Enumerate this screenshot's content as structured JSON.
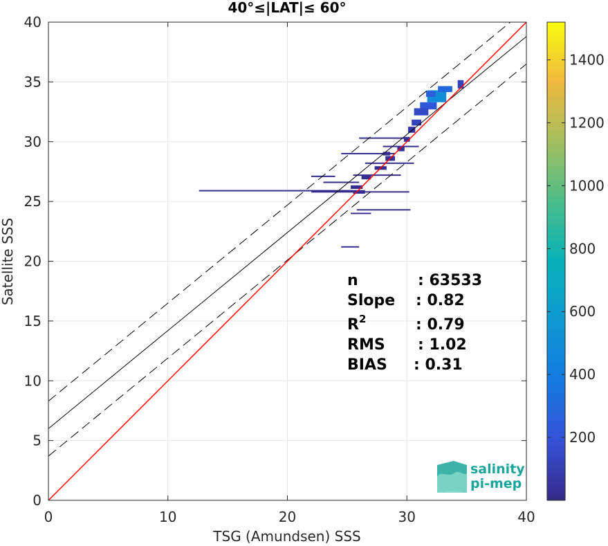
{
  "chart_data": {
    "type": "heatmap",
    "title": "40°≤|LAT|≤ 60°",
    "xlabel": "TSG (Amundsen) SSS",
    "ylabel": "Satellite SSS",
    "xlim": [
      0,
      40
    ],
    "ylim": [
      0,
      40
    ],
    "xticks": [
      "0",
      "10",
      "20",
      "30",
      "40"
    ],
    "yticks": [
      "0",
      "5",
      "10",
      "15",
      "20",
      "25",
      "30",
      "35",
      "40"
    ],
    "grid": true,
    "colorbar": {
      "range": [
        0,
        1520
      ],
      "ticks": [
        "200",
        "400",
        "600",
        "800",
        "1000",
        "1200",
        "1400"
      ],
      "colormap": "parula"
    },
    "lines": {
      "identity": {
        "intercept": 0,
        "slope": 1,
        "color": "#ff0000"
      },
      "fit": {
        "intercept": 6.0,
        "slope": 0.82,
        "color": "#000000"
      },
      "fit_upper": {
        "intercept": 8.3,
        "slope": 0.82,
        "dashed": true
      },
      "fit_lower": {
        "intercept": 3.7,
        "slope": 0.82,
        "dashed": true
      }
    },
    "density_cells": [
      {
        "x": 32.5,
        "y": 33.8,
        "w": 1.6,
        "h": 1.0,
        "count": 500
      },
      {
        "x": 33.2,
        "y": 34.4,
        "w": 1.2,
        "h": 0.5,
        "count": 300
      },
      {
        "x": 31.8,
        "y": 33.0,
        "w": 1.4,
        "h": 0.6,
        "count": 220
      },
      {
        "x": 31.2,
        "y": 32.5,
        "w": 1.2,
        "h": 0.6,
        "count": 150
      },
      {
        "x": 30.8,
        "y": 31.6,
        "w": 0.8,
        "h": 0.5,
        "count": 120
      },
      {
        "x": 30.4,
        "y": 31.0,
        "w": 0.6,
        "h": 0.5,
        "count": 60
      },
      {
        "x": 32.0,
        "y": 34.0,
        "w": 0.8,
        "h": 0.5,
        "count": 250
      },
      {
        "x": 34.5,
        "y": 34.8,
        "w": 0.5,
        "h": 0.7,
        "count": 120
      },
      {
        "x": 30.0,
        "y": 30.2,
        "w": 0.5,
        "h": 0.4,
        "count": 40
      },
      {
        "x": 29.5,
        "y": 29.4,
        "w": 0.6,
        "h": 0.4,
        "count": 35
      },
      {
        "x": 28.6,
        "y": 28.6,
        "w": 0.8,
        "h": 0.4,
        "count": 30
      },
      {
        "x": 27.8,
        "y": 27.8,
        "w": 1.0,
        "h": 0.3,
        "count": 25
      },
      {
        "x": 26.6,
        "y": 27.0,
        "w": 0.8,
        "h": 0.3,
        "count": 20
      },
      {
        "x": 25.8,
        "y": 26.2,
        "w": 1.0,
        "h": 0.3,
        "count": 20
      },
      {
        "x": 28.3,
        "y": 29.0,
        "w": 0.6,
        "h": 0.3,
        "count": 20
      },
      {
        "x": 26.0,
        "y": 25.8,
        "w": 1.0,
        "h": 0.3,
        "count": 15
      }
    ],
    "density_lines": [
      {
        "x0": 12.6,
        "x1": 25.5,
        "y": 25.9,
        "count": 15
      },
      {
        "x0": 22.0,
        "x1": 30.2,
        "y": 25.8,
        "count": 15
      },
      {
        "x0": 24.5,
        "x1": 29.0,
        "y": 29.0,
        "count": 15
      },
      {
        "x0": 26.0,
        "x1": 30.0,
        "y": 30.3,
        "count": 15
      },
      {
        "x0": 26.5,
        "x1": 30.6,
        "y": 28.2,
        "count": 15
      },
      {
        "x0": 25.5,
        "x1": 29.5,
        "y": 27.2,
        "count": 15
      },
      {
        "x0": 23.0,
        "x1": 26.0,
        "y": 26.6,
        "count": 15
      },
      {
        "x0": 22.0,
        "x1": 24.0,
        "y": 27.1,
        "count": 15
      },
      {
        "x0": 25.8,
        "x1": 30.3,
        "y": 24.3,
        "count": 15
      },
      {
        "x0": 24.5,
        "x1": 26.0,
        "y": 21.2,
        "count": 15
      },
      {
        "x0": 25.3,
        "x1": 27.0,
        "y": 24.0,
        "count": 15
      },
      {
        "x0": 28.0,
        "x1": 31.0,
        "y": 29.6,
        "count": 15
      }
    ],
    "stats": {
      "labels": [
        "n",
        "Slope",
        "R",
        "RMS",
        "BIAS"
      ],
      "r_superscript": "2",
      "values": [
        ": 63533",
        ": 0.82",
        ": 0.79",
        ": 1.02",
        ": 0.31"
      ]
    }
  },
  "logo": {
    "line1": "salinity",
    "line2": "pi-mep"
  }
}
